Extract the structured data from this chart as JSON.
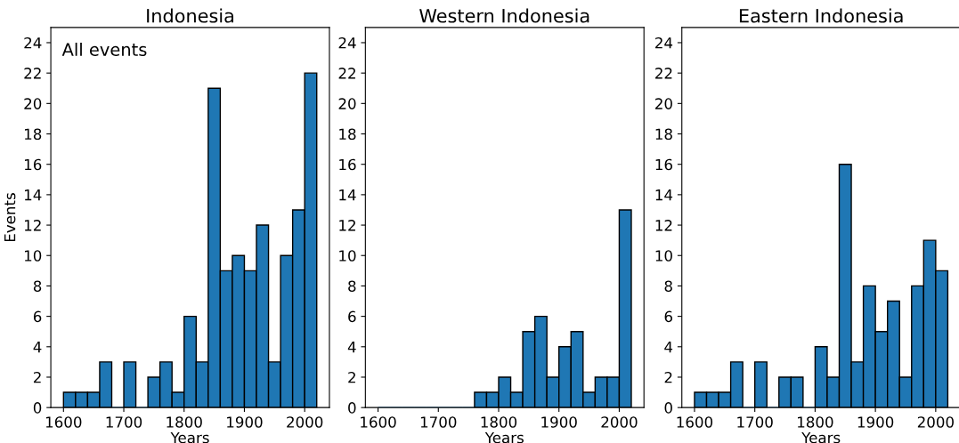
{
  "chart_data": [
    {
      "type": "histogram",
      "title": "Indonesia",
      "xlabel": "Years",
      "ylabel": "Events",
      "annotations": [
        "All events"
      ],
      "color": "#1f77b4",
      "bins": [
        1600,
        1620,
        1640,
        1660,
        1680,
        1700,
        1720,
        1740,
        1760,
        1780,
        1800,
        1820,
        1840,
        1860,
        1880,
        1900,
        1920,
        1940,
        1960,
        1980,
        2000,
        2020
      ],
      "values": [
        1,
        1,
        1,
        3,
        0,
        3,
        0,
        2,
        3,
        1,
        6,
        3,
        21,
        9,
        10,
        9,
        12,
        3,
        10,
        13,
        22
      ],
      "xlim": [
        1579,
        2041
      ],
      "ylim": [
        0,
        25
      ],
      "xticks": [
        1600,
        1700,
        1800,
        1900,
        2000
      ],
      "yticks": [
        0,
        2,
        4,
        6,
        8,
        10,
        12,
        14,
        16,
        18,
        20,
        22,
        24
      ]
    },
    {
      "type": "histogram",
      "title": "Western Indonesia",
      "xlabel": "Years",
      "color": "#1f77b4",
      "bins": [
        1600,
        1620,
        1640,
        1660,
        1680,
        1700,
        1720,
        1740,
        1760,
        1780,
        1800,
        1820,
        1840,
        1860,
        1880,
        1900,
        1920,
        1940,
        1960,
        1980,
        2000,
        2020
      ],
      "values": [
        0,
        0,
        0,
        0,
        0,
        0,
        0,
        0,
        1,
        1,
        2,
        1,
        5,
        6,
        2,
        4,
        5,
        1,
        2,
        2,
        13
      ],
      "xlim": [
        1579,
        2041
      ],
      "ylim": [
        0,
        25
      ],
      "xticks": [
        1600,
        1700,
        1800,
        1900,
        2000
      ],
      "yticks": [
        0,
        2,
        4,
        6,
        8,
        10,
        12,
        14,
        16,
        18,
        20,
        22,
        24
      ]
    },
    {
      "type": "histogram",
      "title": "Eastern Indonesia",
      "xlabel": "Years",
      "color": "#1f77b4",
      "bins": [
        1600,
        1620,
        1640,
        1660,
        1680,
        1700,
        1720,
        1740,
        1760,
        1780,
        1800,
        1820,
        1840,
        1860,
        1880,
        1900,
        1920,
        1940,
        1960,
        1980,
        2000,
        2020
      ],
      "values": [
        1,
        1,
        1,
        3,
        0,
        3,
        0,
        2,
        2,
        0,
        4,
        2,
        16,
        3,
        8,
        5,
        7,
        2,
        8,
        11,
        9
      ],
      "xlim": [
        1579,
        2041
      ],
      "ylim": [
        0,
        25
      ],
      "xticks": [
        1600,
        1700,
        1800,
        1900,
        2000
      ],
      "yticks": [
        0,
        2,
        4,
        6,
        8,
        10,
        12,
        14,
        16,
        18,
        20,
        22,
        24
      ]
    }
  ]
}
